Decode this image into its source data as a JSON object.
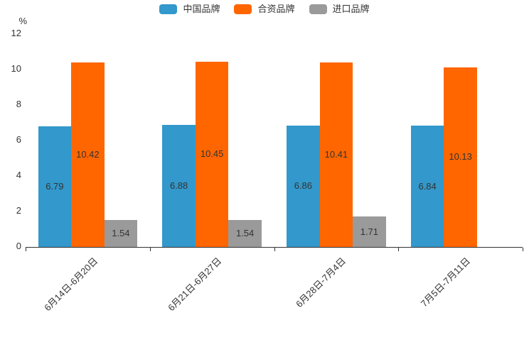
{
  "chart_data": {
    "type": "bar",
    "title": "",
    "unit": "%",
    "categories": [
      "6月14日-6月20日",
      "6月21日-6月27日",
      "6月28日-7月4日",
      "7月5日-7月11日"
    ],
    "series": [
      {
        "name": "中国品牌",
        "color": "#3398cb",
        "values": [
          6.79,
          6.88,
          6.86,
          6.84
        ]
      },
      {
        "name": "合资品牌",
        "color": "#ff6600",
        "values": [
          10.42,
          10.45,
          10.41,
          10.13
        ]
      },
      {
        "name": "进口品牌",
        "color": "#9a9a9a",
        "values": [
          1.54,
          1.54,
          1.71,
          null
        ]
      }
    ],
    "bar_labels": [
      "6.79",
      "10.42",
      "1.54",
      "6.88",
      "10.45",
      "1.54",
      "6.86",
      "10.41",
      "1.71",
      "6.84",
      "10.13"
    ],
    "ylim": [
      0,
      12
    ],
    "yticks": [
      0,
      2,
      4,
      6,
      8,
      10,
      12
    ],
    "legend_position": "top-center",
    "grid": false,
    "label_color": "#333333",
    "axis_color": "#333333",
    "background": "#ffffff"
  }
}
